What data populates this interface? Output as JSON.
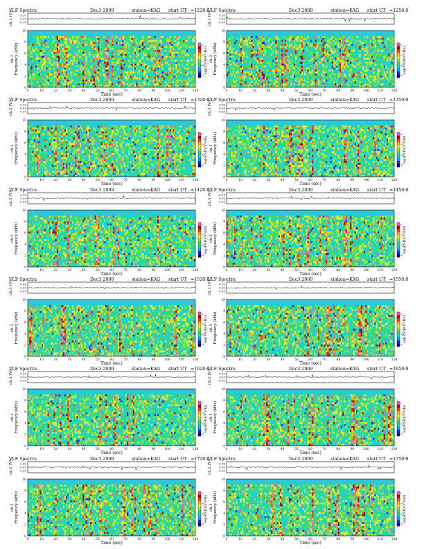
{
  "page": {
    "header": {
      "instrument": "VLF Spectra",
      "date": "Dec3 2009",
      "station": "station=KAG",
      "start_prefix": "start  UT"
    },
    "trace_axis_label": "ch.1 (V)",
    "trace_ticks": [
      "0.30",
      "0.00",
      "-0.30"
    ],
    "freq_axis_label_line1": "ch.1",
    "freq_axis_label_line2": "Frequency  (kHz)",
    "freq_ticks": [
      "0",
      "2",
      "4",
      "6",
      "8",
      "10"
    ],
    "time_axis_label": "Time  (sec)",
    "time_ticks": [
      "0",
      "10",
      "20",
      "30",
      "40",
      "50",
      "60",
      "70",
      "80",
      "90",
      "100",
      "110",
      "120"
    ],
    "colorbar_label": "log(PSD)(V²/Hz)",
    "colorbar_ticks": [
      "0",
      "-3",
      "-6",
      "-9"
    ]
  },
  "chart_data": [
    {
      "type": "heatmap",
      "start_ut": "=1220:0",
      "xlim": [
        0,
        120
      ],
      "ylim": [
        0,
        10
      ],
      "xlabel": "Time  (sec)",
      "ylabel": "Frequency (kHz)"
    },
    {
      "type": "heatmap",
      "start_ut": "=1250:0",
      "xlim": [
        0,
        120
      ],
      "ylim": [
        0,
        10
      ],
      "xlabel": "Time  (sec)",
      "ylabel": "Frequency (kHz)"
    },
    {
      "type": "heatmap",
      "start_ut": "=1320:0",
      "xlim": [
        0,
        120
      ],
      "ylim": [
        0,
        10
      ],
      "xlabel": "Time  (sec)",
      "ylabel": "Frequency (kHz)"
    },
    {
      "type": "heatmap",
      "start_ut": "=1350:0",
      "xlim": [
        0,
        120
      ],
      "ylim": [
        0,
        10
      ],
      "xlabel": "Time  (sec)",
      "ylabel": "Frequency (kHz)"
    },
    {
      "type": "heatmap",
      "start_ut": "=1420:0",
      "xlim": [
        0,
        120
      ],
      "ylim": [
        0,
        10
      ],
      "xlabel": "Time  (sec)",
      "ylabel": "Frequency (kHz)"
    },
    {
      "type": "heatmap",
      "start_ut": "=1450:0",
      "xlim": [
        0,
        120
      ],
      "ylim": [
        0,
        10
      ],
      "xlabel": "Time  (sec)",
      "ylabel": "Frequency (kHz)"
    },
    {
      "type": "heatmap",
      "start_ut": "=1520:0",
      "xlim": [
        0,
        120
      ],
      "ylim": [
        0,
        10
      ],
      "xlabel": "Time  (sec)",
      "ylabel": "Frequency (kHz)"
    },
    {
      "type": "heatmap",
      "start_ut": "=1550:0",
      "xlim": [
        0,
        120
      ],
      "ylim": [
        0,
        10
      ],
      "xlabel": "Time  (sec)",
      "ylabel": "Frequency (kHz)"
    },
    {
      "type": "heatmap",
      "start_ut": "=1620:0",
      "xlim": [
        0,
        120
      ],
      "ylim": [
        0,
        10
      ],
      "xlabel": "Time  (sec)",
      "ylabel": "Frequency (kHz)"
    },
    {
      "type": "heatmap",
      "start_ut": "=1650:0",
      "xlim": [
        0,
        120
      ],
      "ylim": [
        0,
        10
      ],
      "xlabel": "Time  (sec)",
      "ylabel": "Frequency (kHz)"
    },
    {
      "type": "heatmap",
      "start_ut": "=1720:0",
      "xlim": [
        0,
        120
      ],
      "ylim": [
        0,
        10
      ],
      "xlabel": "Time  (sec)",
      "ylabel": "Frequency (kHz)"
    },
    {
      "type": "heatmap",
      "start_ut": "=1750:0",
      "xlim": [
        0,
        120
      ],
      "ylim": [
        0,
        10
      ],
      "xlabel": "Time  (sec)",
      "ylabel": "Frequency (kHz)"
    }
  ],
  "colors": {
    "background_cyan": "#2ec8d8",
    "spectrum_scale": [
      "#0000a0",
      "#0030ff",
      "#00a8ff",
      "#19d3d3",
      "#3ad870",
      "#8fe040",
      "#e6ec2a",
      "#ffb400",
      "#ff4000",
      "#c00000",
      "#ff5ab4"
    ]
  }
}
